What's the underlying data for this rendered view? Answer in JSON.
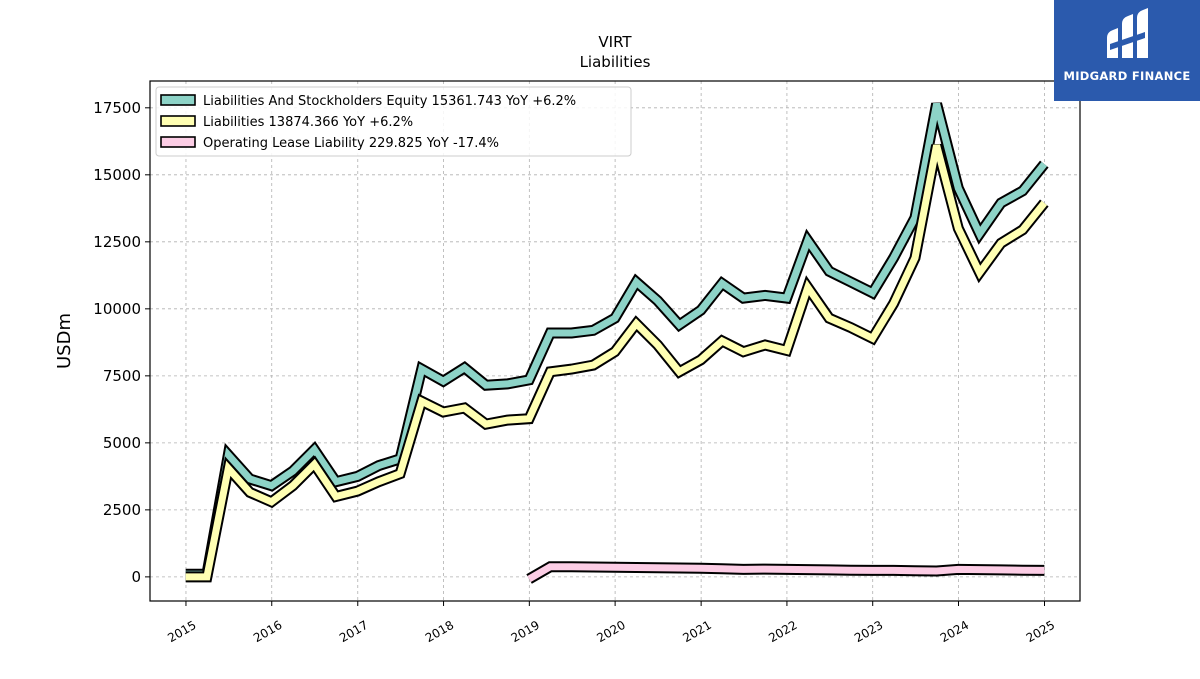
{
  "brand": {
    "name": "MIDGARD FINANCE",
    "color": "#2b5aad"
  },
  "chart_data": {
    "type": "line",
    "title": "VIRT",
    "subtitle": "Liabilities",
    "xlabel": "",
    "ylabel": "USDm",
    "xlim": [
      "2014-08-01",
      "2025-06-01"
    ],
    "ylim": [
      -900,
      18500
    ],
    "x_ticks": [
      "2015",
      "2016",
      "2017",
      "2018",
      "2019",
      "2020",
      "2021",
      "2022",
      "2023",
      "2024",
      "2025"
    ],
    "y_ticks": [
      0,
      2500,
      5000,
      7500,
      10000,
      12500,
      15000,
      17500
    ],
    "grid": true,
    "legend_position": "top-left",
    "series": [
      {
        "name": "Liabilities And Stockholders Equity",
        "legend": "Liabilities And Stockholders Equity  15361.743 YoY +6.2%",
        "color": "#8dd3c7",
        "points": [
          [
            "2014-12-31",
            100
          ],
          [
            "2015-03-31",
            100
          ],
          [
            "2015-06-30",
            4550
          ],
          [
            "2015-09-30",
            3650
          ],
          [
            "2015-12-31",
            3400
          ],
          [
            "2016-03-31",
            3950
          ],
          [
            "2016-06-30",
            4750
          ],
          [
            "2016-09-30",
            3550
          ],
          [
            "2016-12-31",
            3750
          ],
          [
            "2017-03-31",
            4150
          ],
          [
            "2017-06-30",
            4400
          ],
          [
            "2017-09-30",
            7750
          ],
          [
            "2017-12-31",
            7300
          ],
          [
            "2018-03-31",
            7800
          ],
          [
            "2018-06-30",
            7150
          ],
          [
            "2018-09-30",
            7200
          ],
          [
            "2018-12-31",
            7350
          ],
          [
            "2019-03-31",
            9100
          ],
          [
            "2019-06-30",
            9100
          ],
          [
            "2019-09-30",
            9200
          ],
          [
            "2019-12-31",
            9650
          ],
          [
            "2020-03-31",
            11000
          ],
          [
            "2020-06-30",
            10300
          ],
          [
            "2020-09-30",
            9400
          ],
          [
            "2020-12-31",
            9950
          ],
          [
            "2021-03-31",
            10950
          ],
          [
            "2021-06-30",
            10400
          ],
          [
            "2021-09-30",
            10500
          ],
          [
            "2021-12-31",
            10400
          ],
          [
            "2022-03-31",
            12550
          ],
          [
            "2022-06-30",
            11400
          ],
          [
            "2022-09-30",
            11000
          ],
          [
            "2022-12-31",
            10600
          ],
          [
            "2023-03-31",
            11900
          ],
          [
            "2023-06-30",
            13400
          ],
          [
            "2023-09-30",
            17650
          ],
          [
            "2023-12-31",
            14500
          ],
          [
            "2024-03-31",
            12800
          ],
          [
            "2024-06-30",
            13950
          ],
          [
            "2024-09-30",
            14400
          ],
          [
            "2024-12-31",
            15400
          ]
        ]
      },
      {
        "name": "Liabilities",
        "legend": "Liabilities  13874.366 YoY +6.2%",
        "color": "#ffffb3",
        "points": [
          [
            "2014-12-31",
            0
          ],
          [
            "2015-03-31",
            0
          ],
          [
            "2015-06-30",
            4050
          ],
          [
            "2015-09-30",
            3150
          ],
          [
            "2015-12-31",
            2800
          ],
          [
            "2016-03-31",
            3400
          ],
          [
            "2016-06-30",
            4200
          ],
          [
            "2016-09-30",
            3000
          ],
          [
            "2016-12-31",
            3200
          ],
          [
            "2017-03-31",
            3550
          ],
          [
            "2017-06-30",
            3850
          ],
          [
            "2017-09-30",
            6550
          ],
          [
            "2017-12-31",
            6150
          ],
          [
            "2018-03-31",
            6300
          ],
          [
            "2018-06-30",
            5700
          ],
          [
            "2018-09-30",
            5850
          ],
          [
            "2018-12-31",
            5900
          ],
          [
            "2019-03-31",
            7650
          ],
          [
            "2019-06-30",
            7750
          ],
          [
            "2019-09-30",
            7900
          ],
          [
            "2019-12-31",
            8400
          ],
          [
            "2020-03-31",
            9450
          ],
          [
            "2020-06-30",
            8650
          ],
          [
            "2020-09-30",
            7650
          ],
          [
            "2020-12-31",
            8100
          ],
          [
            "2021-03-31",
            8800
          ],
          [
            "2021-06-30",
            8400
          ],
          [
            "2021-09-30",
            8650
          ],
          [
            "2021-12-31",
            8450
          ],
          [
            "2022-03-31",
            10800
          ],
          [
            "2022-06-30",
            9650
          ],
          [
            "2022-09-30",
            9300
          ],
          [
            "2022-12-31",
            8900
          ],
          [
            "2023-03-31",
            10200
          ],
          [
            "2023-06-30",
            11900
          ],
          [
            "2023-09-30",
            16100
          ],
          [
            "2023-12-31",
            13000
          ],
          [
            "2024-03-31",
            11350
          ],
          [
            "2024-06-30",
            12450
          ],
          [
            "2024-09-30",
            12950
          ],
          [
            "2024-12-31",
            13950
          ]
        ]
      },
      {
        "name": "Operating Lease Liability",
        "legend": "Operating Lease Liability  229.825 YoY -17.4%",
        "color": "#fccde5",
        "points": [
          [
            "2018-12-31",
            -80
          ],
          [
            "2019-03-31",
            380
          ],
          [
            "2019-06-30",
            380
          ],
          [
            "2019-09-30",
            370
          ],
          [
            "2019-12-31",
            360
          ],
          [
            "2020-03-31",
            350
          ],
          [
            "2020-06-30",
            340
          ],
          [
            "2020-09-30",
            330
          ],
          [
            "2020-12-31",
            320
          ],
          [
            "2021-03-31",
            300
          ],
          [
            "2021-06-30",
            280
          ],
          [
            "2021-09-30",
            290
          ],
          [
            "2021-12-31",
            280
          ],
          [
            "2022-03-31",
            270
          ],
          [
            "2022-06-30",
            260
          ],
          [
            "2022-09-30",
            250
          ],
          [
            "2022-12-31",
            240
          ],
          [
            "2023-03-31",
            240
          ],
          [
            "2023-06-30",
            230
          ],
          [
            "2023-09-30",
            220
          ],
          [
            "2023-12-31",
            280
          ],
          [
            "2024-03-31",
            270
          ],
          [
            "2024-06-30",
            260
          ],
          [
            "2024-09-30",
            250
          ],
          [
            "2024-12-31",
            240
          ]
        ]
      }
    ]
  }
}
